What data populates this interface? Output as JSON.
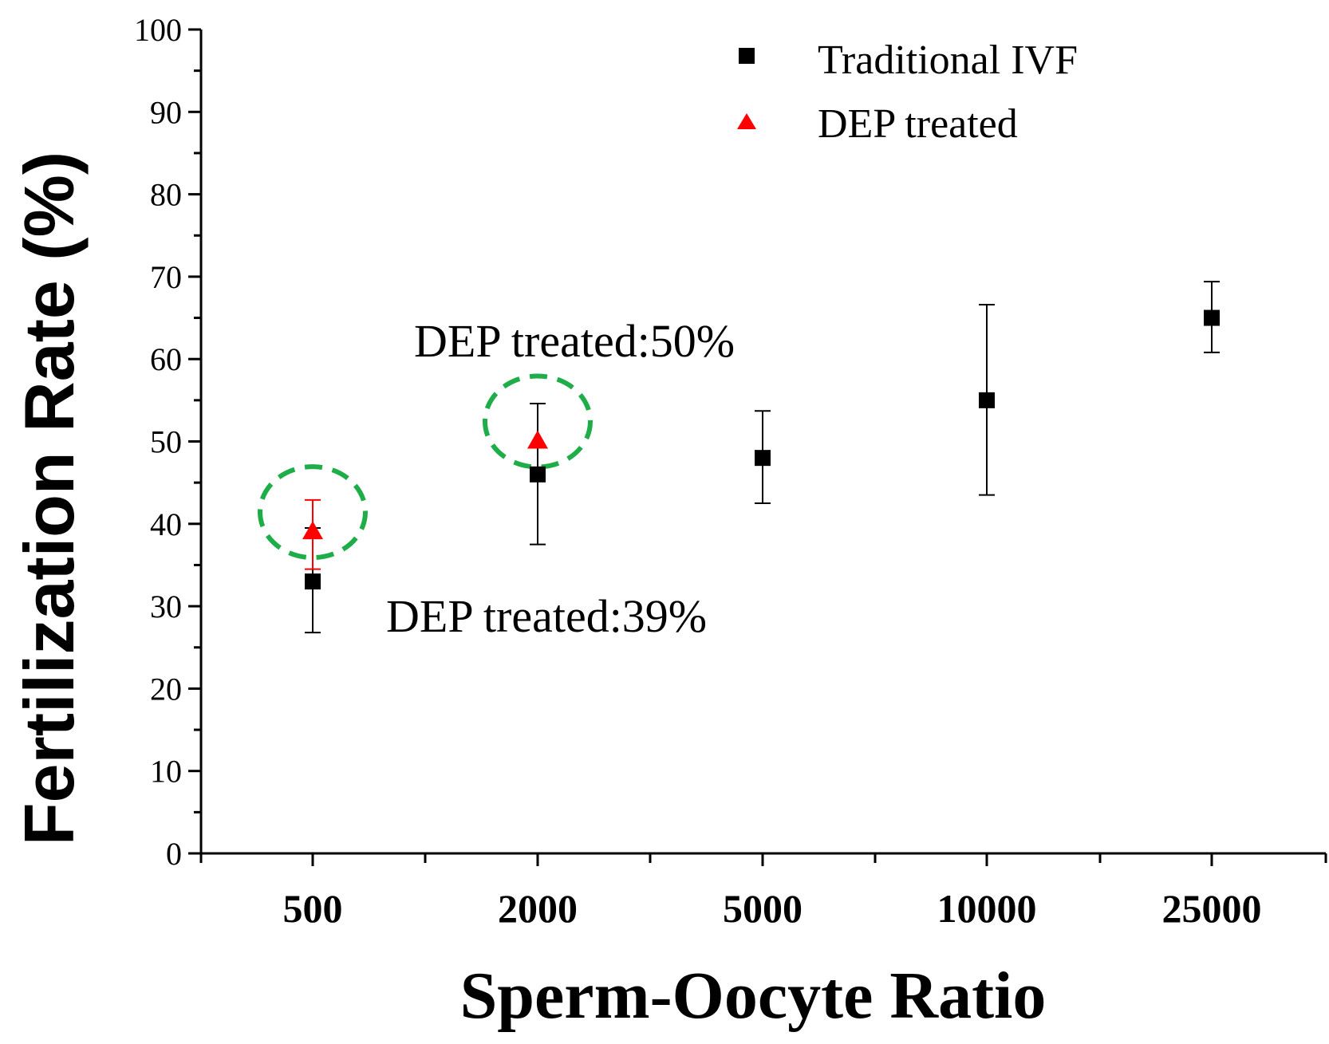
{
  "chart_data": {
    "type": "scatter",
    "title": "",
    "xlabel": "Sperm-Oocyte Ratio",
    "ylabel": "Fertilization Rate (%)",
    "categories": [
      "500",
      "2000",
      "5000",
      "10000",
      "25000"
    ],
    "ylim": [
      0,
      100
    ],
    "yticks": [
      0,
      10,
      20,
      30,
      40,
      50,
      60,
      70,
      80,
      90,
      100
    ],
    "legend_position": "top-right",
    "series": [
      {
        "name": "Traditional IVF",
        "marker": "square",
        "color": "#000000",
        "values": [
          33,
          46,
          48,
          55,
          65
        ],
        "err_low": [
          26.8,
          37.5,
          42.5,
          43.5,
          60.8
        ],
        "err_high": [
          39.5,
          54.6,
          53.7,
          66.6,
          69.4
        ]
      },
      {
        "name": "DEP treated",
        "marker": "triangle",
        "color": "#ff0000",
        "categories_index": [
          0,
          1
        ],
        "values": [
          39,
          50
        ],
        "err_low": [
          34.5,
          50
        ],
        "err_high": [
          42.9,
          50
        ]
      }
    ],
    "annotations": [
      {
        "text": "DEP treated:50%",
        "category_index": 1,
        "value": 50
      },
      {
        "text": "DEP treated:39%",
        "category_index": 0,
        "value": 39
      }
    ],
    "highlight_color": "#1fad4a"
  }
}
